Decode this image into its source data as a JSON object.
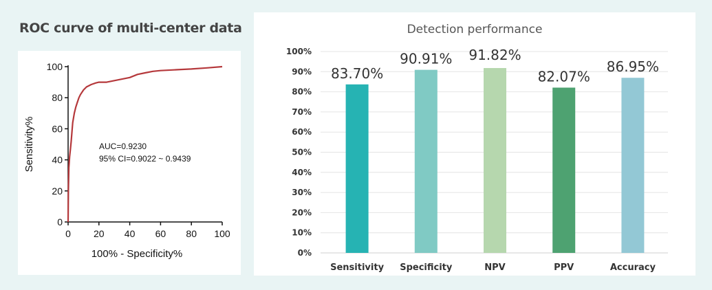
{
  "roc_title": "ROC curve of multi-center data",
  "colors": {
    "page_bg": "#e9f4f4",
    "roc_curve": "#b5383b",
    "grid": "#e4e4e4"
  },
  "chart_data": [
    {
      "type": "line",
      "title": "ROC curve of multi-center data",
      "xlabel": "100% - Specificity%",
      "ylabel": "Sensitivity%",
      "xlim": [
        0,
        100
      ],
      "ylim": [
        0,
        100
      ],
      "xticks": [
        0,
        20,
        40,
        60,
        80,
        100
      ],
      "yticks": [
        0,
        20,
        40,
        60,
        80,
        100
      ],
      "grid": false,
      "annotations": [
        "AUC=0.9230",
        "95% CI=0.9022 ~ 0.9439"
      ],
      "series": [
        {
          "x": [
            0,
            0.2,
            0.5,
            1,
            1.5,
            2,
            2.5,
            3,
            4,
            5,
            6,
            7,
            8,
            10,
            12,
            15,
            18,
            20,
            25,
            30,
            35,
            40,
            45,
            50,
            55,
            60,
            70,
            80,
            90,
            100
          ],
          "y": [
            0,
            20,
            35,
            42,
            47,
            52,
            58,
            64,
            70,
            74,
            77,
            80,
            82,
            85,
            87,
            88.5,
            89.5,
            90,
            90,
            91,
            92,
            93,
            95,
            96,
            97,
            97.5,
            98,
            98.5,
            99.2,
            100
          ]
        }
      ]
    },
    {
      "type": "bar",
      "title": "Detection performance",
      "categories": [
        "Sensitivity",
        "Specificity",
        "NPV",
        "PPV",
        "Accuracy"
      ],
      "values": [
        83.7,
        90.91,
        91.82,
        82.07,
        86.95
      ],
      "value_labels": [
        "83.70%",
        "90.91%",
        "91.82%",
        "82.07%",
        "86.95%"
      ],
      "colors": [
        "#26b3b3",
        "#80cac4",
        "#b6d7ae",
        "#4ea271",
        "#93c8d5"
      ],
      "ylim": [
        0,
        100
      ],
      "yticks": [
        "0%",
        "10%",
        "20%",
        "30%",
        "40%",
        "50%",
        "60%",
        "70%",
        "80%",
        "90%",
        "100%"
      ],
      "grid": true
    }
  ]
}
